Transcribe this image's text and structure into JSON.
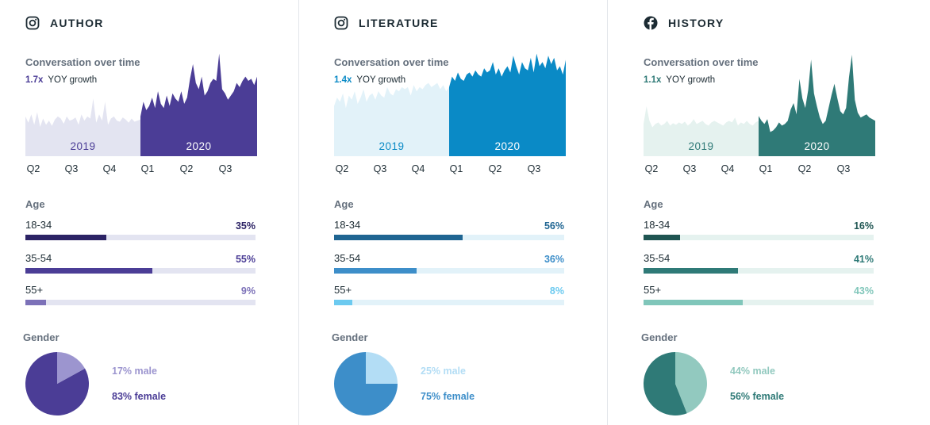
{
  "panels": [
    {
      "platform_icon": "instagram-icon",
      "title": "AUTHOR",
      "conversation": {
        "title": "Conversation over time",
        "growth": "1.7x",
        "growth_label": "YOY growth",
        "year_labels": [
          "2019",
          "2020"
        ],
        "quarter_labels": [
          "Q2",
          "Q3",
          "Q4",
          "Q1",
          "Q2",
          "Q3"
        ]
      },
      "age": {
        "title": "Age",
        "groups": [
          {
            "label": "18-34",
            "pct_text": "35%",
            "value": 35
          },
          {
            "label": "35-54",
            "pct_text": "55%",
            "value": 55
          },
          {
            "label": "55+",
            "pct_text": "9%",
            "value": 9
          }
        ]
      },
      "gender": {
        "title": "Gender",
        "male_text": "17% male",
        "female_text": "83% female",
        "male": 17,
        "female": 83
      },
      "colors": {
        "growth": "#4b3d96",
        "area_2019": "#e3e4f1",
        "area_2020": "#4b3d96",
        "year_2019_text": "#4b3d96",
        "year_2020_text": "#ffffff",
        "track": "#e3e4f1",
        "bars": [
          "#2c2365",
          "#4b3d96",
          "#7c71b8"
        ],
        "pct": [
          "#2c2365",
          "#4b3d96",
          "#7c71b8"
        ],
        "pie_male": "#9c95cf",
        "pie_female": "#4b3d96",
        "male_text": "#9c95cf",
        "female_text": "#4b3d96"
      }
    },
    {
      "platform_icon": "instagram-icon",
      "title": "LITERATURE",
      "conversation": {
        "title": "Conversation over time",
        "growth": "1.4x",
        "growth_label": "YOY growth",
        "year_labels": [
          "2019",
          "2020"
        ],
        "quarter_labels": [
          "Q2",
          "Q3",
          "Q4",
          "Q1",
          "Q2",
          "Q3"
        ]
      },
      "age": {
        "title": "Age",
        "groups": [
          {
            "label": "18-34",
            "pct_text": "56%",
            "value": 56
          },
          {
            "label": "35-54",
            "pct_text": "36%",
            "value": 36
          },
          {
            "label": "55+",
            "pct_text": "8%",
            "value": 8
          }
        ]
      },
      "gender": {
        "title": "Gender",
        "male_text": "25% male",
        "female_text": "75% female",
        "male": 25,
        "female": 75
      },
      "colors": {
        "growth": "#0a8ac6",
        "area_2019": "#e2f2f9",
        "area_2020": "#0a8ac6",
        "year_2019_text": "#0a8ac6",
        "year_2020_text": "#ffffff",
        "track": "#e2f2f9",
        "bars": [
          "#1f6592",
          "#3d8ec9",
          "#6ccaf0"
        ],
        "pct": [
          "#1f6592",
          "#3d8ec9",
          "#6ccaf0"
        ],
        "pie_male": "#b3ddf5",
        "pie_female": "#3d8ec9",
        "male_text": "#b3ddf5",
        "female_text": "#3d8ec9"
      }
    },
    {
      "platform_icon": "facebook-icon",
      "title": "HISTORY",
      "conversation": {
        "title": "Conversation over time",
        "growth": "1.1x",
        "growth_label": "YOY growth",
        "year_labels": [
          "2019",
          "2020"
        ],
        "quarter_labels": [
          "Q2",
          "Q3",
          "Q4",
          "Q1",
          "Q2",
          "Q3"
        ]
      },
      "age": {
        "title": "Age",
        "groups": [
          {
            "label": "18-34",
            "pct_text": "16%",
            "value": 16
          },
          {
            "label": "35-54",
            "pct_text": "41%",
            "value": 41
          },
          {
            "label": "55+",
            "pct_text": "43%",
            "value": 43
          }
        ]
      },
      "gender": {
        "title": "Gender",
        "male_text": "44% male",
        "female_text": "56% female",
        "male": 44,
        "female": 56
      },
      "colors": {
        "growth": "#2f7a77",
        "area_2019": "#e5f2ef",
        "area_2020": "#2f7a77",
        "year_2019_text": "#2f7a77",
        "year_2020_text": "#ffffff",
        "track": "#e5f2ef",
        "bars": [
          "#1f5552",
          "#2f7a77",
          "#80c6ba"
        ],
        "pct": [
          "#1f5552",
          "#2f7a77",
          "#80c6ba"
        ],
        "pie_male": "#92c9bf",
        "pie_female": "#2f7a77",
        "male_text": "#92c9bf",
        "female_text": "#2f7a77"
      }
    }
  ],
  "chart_data": [
    {
      "type": "area",
      "title": "Conversation over time",
      "subtitle": "1.7x YOY growth",
      "x_ticks": [
        "Q2",
        "Q3",
        "Q4",
        "Q1",
        "Q2",
        "Q3"
      ],
      "series": [
        {
          "name": "2019",
          "values": [
            38,
            32,
            40,
            30,
            42,
            28,
            36,
            30,
            34,
            29,
            35,
            38,
            36,
            31,
            38,
            34,
            35,
            37,
            30,
            40,
            34,
            38,
            36,
            55,
            32,
            40,
            34,
            52,
            30,
            36,
            38,
            34,
            33,
            37,
            35,
            32,
            36,
            33,
            34,
            35
          ]
        },
        {
          "name": "2020",
          "values": [
            38,
            52,
            44,
            48,
            56,
            46,
            62,
            50,
            46,
            58,
            48,
            60,
            55,
            52,
            62,
            50,
            56,
            74,
            88,
            70,
            64,
            76,
            58,
            62,
            70,
            74,
            72,
            98,
            64,
            60,
            54,
            58,
            62,
            70,
            66,
            72,
            76,
            72,
            74,
            68,
            76
          ]
        }
      ],
      "ylim": [
        0,
        100
      ]
    },
    {
      "type": "area",
      "title": "Conversation over time",
      "subtitle": "1.4x YOY growth",
      "x_ticks": [
        "Q2",
        "Q3",
        "Q4",
        "Q1",
        "Q2",
        "Q3"
      ],
      "series": [
        {
          "name": "2019",
          "values": [
            48,
            56,
            52,
            60,
            46,
            58,
            54,
            62,
            50,
            56,
            64,
            52,
            58,
            60,
            54,
            62,
            58,
            56,
            66,
            60,
            58,
            64,
            62,
            66,
            64,
            66,
            58,
            68,
            62,
            66,
            64,
            68,
            70,
            66,
            68,
            70,
            64,
            68,
            62,
            66
          ]
        },
        {
          "name": "2020",
          "values": [
            66,
            76,
            72,
            80,
            74,
            72,
            78,
            80,
            76,
            82,
            78,
            76,
            84,
            80,
            82,
            90,
            78,
            84,
            76,
            82,
            86,
            80,
            96,
            86,
            78,
            90,
            84,
            82,
            94,
            80,
            98,
            86,
            90,
            84,
            96,
            88,
            94,
            82,
            86,
            78,
            92
          ]
        }
      ],
      "ylim": [
        0,
        100
      ]
    },
    {
      "type": "area",
      "title": "Conversation over time",
      "subtitle": "1.1x YOY growth",
      "x_ticks": [
        "Q2",
        "Q3",
        "Q4",
        "Q1",
        "Q2",
        "Q3"
      ],
      "series": [
        {
          "name": "2019",
          "values": [
            40,
            62,
            44,
            36,
            40,
            42,
            38,
            40,
            44,
            38,
            41,
            39,
            42,
            40,
            43,
            38,
            41,
            46,
            40,
            42,
            44,
            40,
            38,
            42,
            44,
            42,
            40,
            38,
            42,
            44,
            42,
            48,
            38,
            42,
            40,
            44,
            40,
            38,
            42,
            44
          ]
        },
        {
          "name": "2020",
          "values": [
            50,
            44,
            40,
            46,
            30,
            32,
            36,
            42,
            38,
            40,
            44,
            58,
            66,
            52,
            96,
            72,
            60,
            82,
            120,
            78,
            62,
            48,
            40,
            44,
            60,
            76,
            90,
            72,
            56,
            52,
            60,
            98,
            126,
            70,
            54,
            48,
            50,
            52,
            48,
            46,
            44
          ]
        }
      ],
      "ylim": [
        0,
        130
      ]
    }
  ]
}
